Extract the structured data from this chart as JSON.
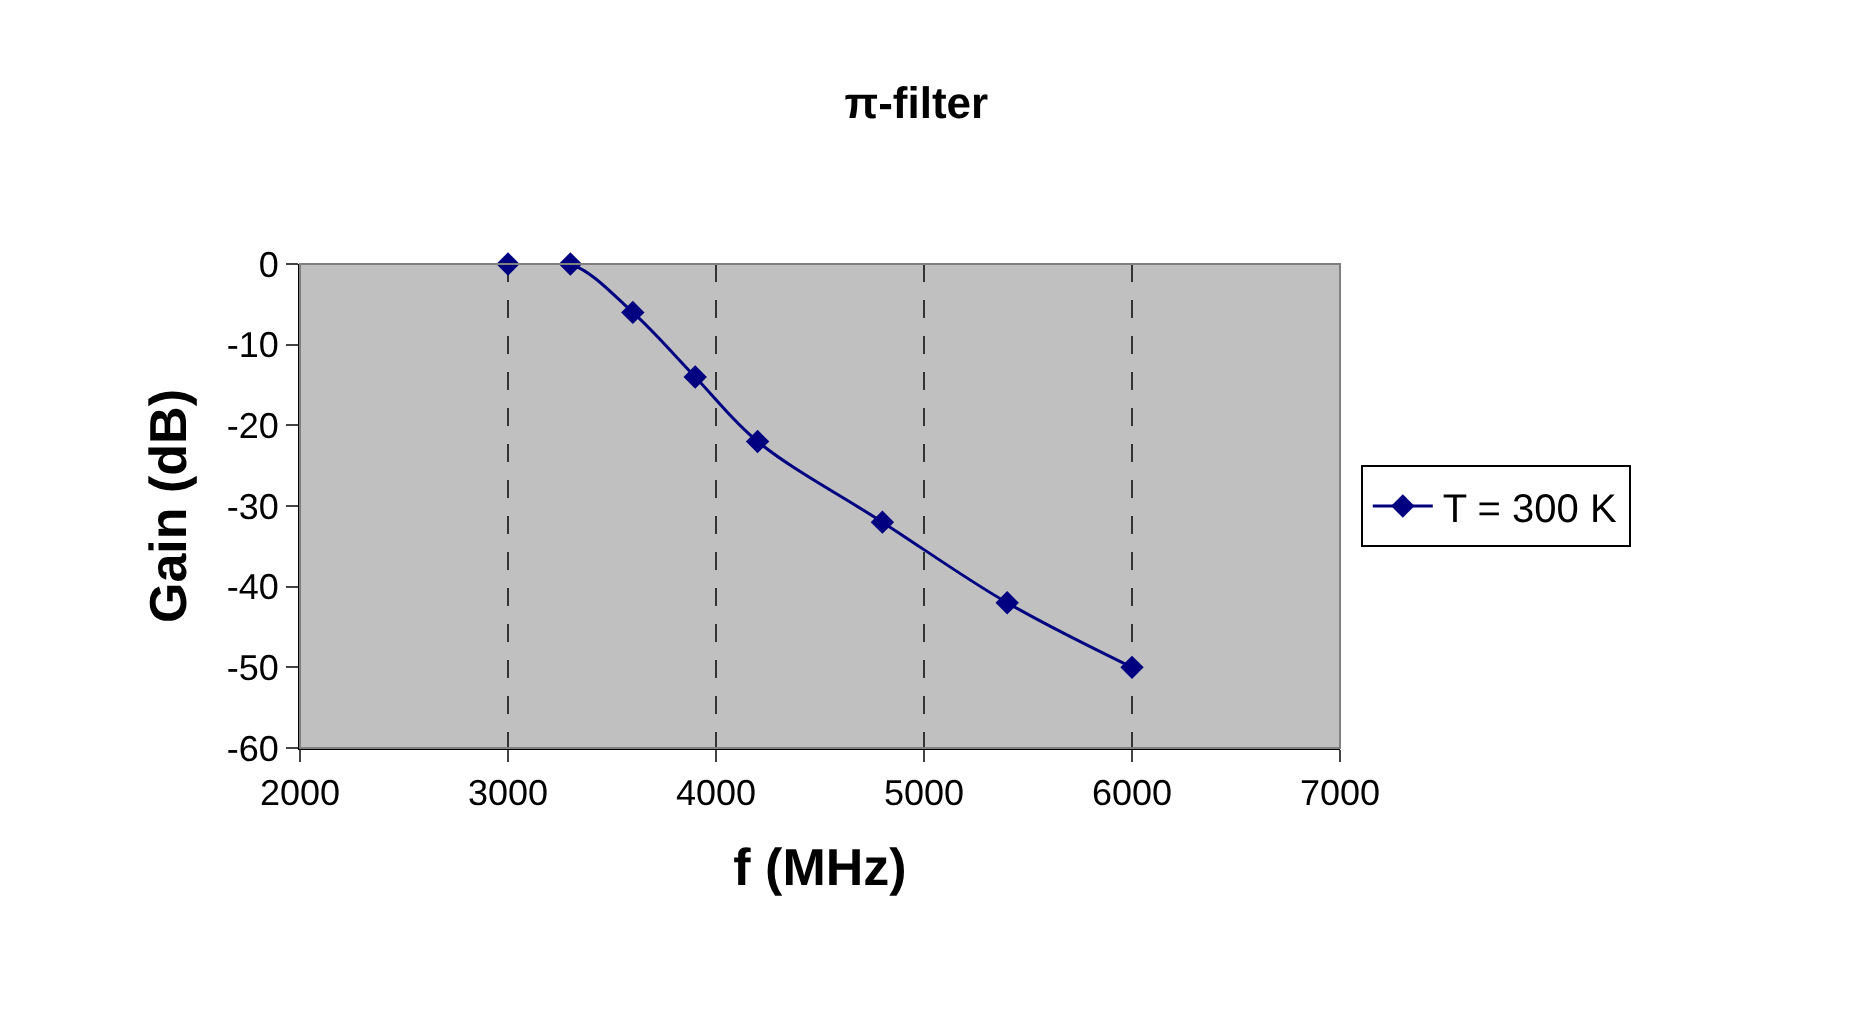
{
  "chart_data": {
    "type": "line",
    "title": "π-filter",
    "xlabel": "f (MHz)",
    "ylabel": "Gain (dB)",
    "x": [
      3000,
      3300,
      3600,
      3900,
      4200,
      4800,
      5400,
      6000
    ],
    "series": [
      {
        "name": "T = 300 K",
        "color": "#000080",
        "values": [
          0,
          0,
          -6,
          -14,
          -22,
          -32,
          -42,
          -50
        ]
      }
    ],
    "xlim": [
      2000,
      7000
    ],
    "xticks": [
      2000,
      3000,
      4000,
      5000,
      6000,
      7000
    ],
    "ylim": [
      -60,
      0
    ],
    "yticks": [
      -60,
      -50,
      -40,
      -30,
      -20,
      -10,
      0
    ],
    "grid": "x",
    "legend": "right",
    "marker": "diamond",
    "line_style": "solid"
  }
}
